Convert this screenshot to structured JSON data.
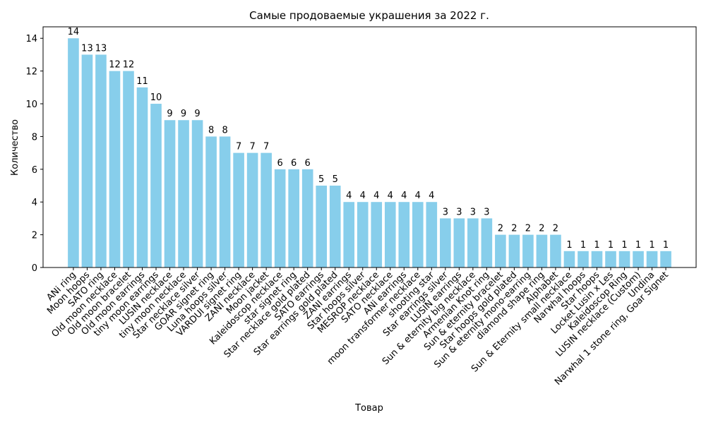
{
  "chart_data": {
    "type": "bar",
    "title": "Самые продоваемые украшения за 2022 г.",
    "xlabel": "Товар",
    "ylabel": "Количество",
    "ylim": [
      0,
      14.7
    ],
    "yticks": [
      0,
      2,
      4,
      6,
      8,
      10,
      12,
      14
    ],
    "grid": false,
    "legend": "none",
    "bar_color": "#87ceeb",
    "data_labels": true,
    "categories": [
      "ANi ring",
      "Moon hoops",
      "SATO ring",
      "Old moon necklace",
      "Old moon bracelet",
      "Old moon earrings",
      "tiny moon earrings",
      "LUSIN necklace",
      "tiny moon necklace",
      "Star necklace silver",
      "GOAR signet ring",
      "Luna hoops silver",
      "VARDUI signet ring",
      "ZANI necklace",
      "Moon jacket",
      "Kaleidoscop necklace",
      "star signet ring",
      "Star necklace gold plated",
      "SATO earrings",
      "Star earrings gold plated",
      "ZANI earrings",
      "Star hoops silver",
      "MESROP necklace",
      "SATO necklace",
      "ANi earrings",
      "moon transformer necklace",
      "shooting star",
      "Star earrings silver",
      "LUSIN earrings",
      "Sun & eternity big necklace",
      "Armenian Knot ring",
      "Sun & eternity bracelet",
      "Star hoops gold plated",
      "Sun & eternity mono-earring",
      "diamond shape ring",
      "Alphabet",
      "Sun & Eternity small necklace",
      "Narwhal hoops",
      "Star hoops",
      "Locket Lusin x Les",
      "Kaleidoscop Ring",
      "LUSIN necklace (Custom)",
      "Undina",
      "Narwhal 1 stone ring, Goar Signet"
    ],
    "values": [
      14,
      13,
      13,
      12,
      12,
      11,
      10,
      9,
      9,
      9,
      8,
      8,
      7,
      7,
      7,
      6,
      6,
      6,
      5,
      5,
      4,
      4,
      4,
      4,
      4,
      4,
      4,
      3,
      3,
      3,
      3,
      2,
      2,
      2,
      2,
      2,
      1,
      1,
      1,
      1,
      1,
      1,
      1,
      1
    ]
  }
}
